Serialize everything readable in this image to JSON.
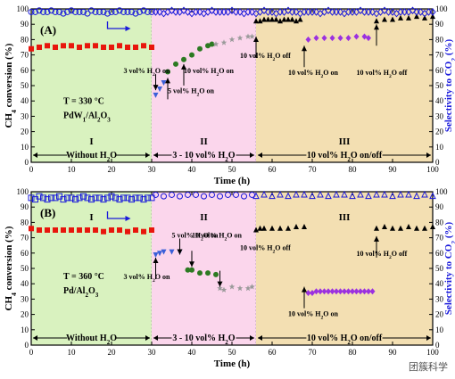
{
  "watermark": "团簇科学",
  "chart_data": [
    {
      "panel_label": "(A)",
      "type": "scatter",
      "xlabel": "Time (h)",
      "ylabel_left": "CH4 conversion (%)",
      "ylabel_right": "Selectivity to CO2 (%)",
      "xlim": [
        0,
        100
      ],
      "ylim": [
        0,
        100
      ],
      "xticks": [
        0,
        10,
        20,
        30,
        40,
        50,
        60,
        70,
        80,
        90,
        100
      ],
      "yticks": [
        0,
        10,
        20,
        30,
        40,
        50,
        60,
        70,
        80,
        90,
        100
      ],
      "regions": [
        {
          "label": "I",
          "range": [
            0,
            30
          ],
          "color": "#d9f2bf",
          "note": "Without H2O"
        },
        {
          "label": "II",
          "range": [
            30,
            56
          ],
          "color": "#fbd6ec",
          "note": "3 - 10 vol% H2O"
        },
        {
          "label": "III",
          "range": [
            56,
            100
          ],
          "color": "#f3dfb2",
          "note": "10 vol% H2O on/off"
        }
      ],
      "condition_lines": [
        "T = 330 °C",
        "PdW1/Al2O3"
      ],
      "series": [
        {
          "marker": "square",
          "color": "#e8160c",
          "axis": "left",
          "x": [
            0,
            2,
            4,
            6,
            8,
            10,
            12,
            14,
            16,
            18,
            20,
            22,
            24,
            26,
            28,
            30
          ],
          "y": [
            74,
            75,
            76,
            75,
            76,
            76,
            75,
            76,
            76,
            75,
            75,
            76,
            75,
            75,
            76,
            75
          ]
        },
        {
          "marker": "triangle-down",
          "color": "#3a5fd8",
          "axis": "left",
          "x": [
            31,
            32,
            33
          ],
          "y": [
            44,
            48,
            52
          ]
        },
        {
          "marker": "circle",
          "color": "#2c7a22",
          "axis": "left",
          "x": [
            34,
            36,
            38,
            40,
            42,
            44,
            45
          ],
          "y": [
            59,
            64,
            67,
            70,
            74,
            76,
            77
          ]
        },
        {
          "marker": "star",
          "color": "#9a9a9a",
          "axis": "left",
          "x": [
            46,
            48,
            50,
            52,
            54,
            55
          ],
          "y": [
            77,
            78,
            80,
            81,
            82,
            82
          ]
        },
        {
          "marker": "triangle-up",
          "color": "#000000",
          "axis": "left",
          "x": [
            56,
            57,
            58,
            59,
            60,
            61,
            62,
            63,
            64,
            65,
            66,
            67
          ],
          "y": [
            92,
            92,
            93,
            93,
            93,
            93,
            92,
            93,
            93,
            93,
            92,
            93
          ]
        },
        {
          "marker": "diamond",
          "color": "#9b30e0",
          "axis": "left",
          "x": [
            69,
            71,
            73,
            75,
            77,
            79,
            81,
            83,
            84
          ],
          "y": [
            80,
            81,
            81,
            81,
            81,
            81,
            82,
            82,
            81
          ]
        },
        {
          "marker": "triangle-up",
          "color": "#000000",
          "axis": "left",
          "x": [
            86,
            88,
            90,
            92,
            94,
            96,
            98,
            100
          ],
          "y": [
            92,
            93,
            93,
            94,
            94,
            95,
            94,
            95
          ]
        },
        {
          "marker": "open-circle",
          "color": "#1a1adb",
          "axis": "right",
          "x": [
            0,
            1,
            2,
            3,
            4,
            5,
            6,
            7,
            8,
            9,
            10,
            11,
            12,
            13,
            14,
            15,
            16,
            17,
            18,
            19,
            20,
            21,
            22,
            23,
            24,
            25,
            26,
            27,
            28,
            29,
            30
          ],
          "y": [
            98,
            98,
            99,
            98,
            98,
            99,
            98,
            98,
            97,
            98,
            99,
            98,
            98,
            98,
            97,
            99,
            98,
            98,
            98,
            97,
            98,
            98,
            99,
            98,
            98,
            98,
            97,
            98,
            99,
            98,
            98
          ]
        },
        {
          "marker": "open-diamond",
          "color": "#1a1adb",
          "axis": "right",
          "x": [
            31,
            32,
            33,
            34,
            35,
            36,
            37,
            38,
            39,
            40,
            41,
            42,
            43,
            44,
            45,
            46,
            47,
            48,
            49,
            50,
            51,
            52,
            53,
            54,
            55,
            56,
            57,
            58,
            59,
            60,
            61,
            62,
            63,
            64,
            65,
            66,
            67,
            68,
            69,
            70,
            71,
            72,
            73,
            74,
            75,
            76,
            77,
            78,
            79,
            80,
            81,
            82,
            83,
            84,
            85,
            86,
            87,
            88,
            89,
            90,
            91,
            92,
            93,
            94,
            95,
            96,
            97,
            98,
            99,
            100
          ],
          "y": [
            98,
            98,
            97,
            98,
            99,
            98,
            98,
            99,
            98,
            97,
            98,
            98,
            97,
            98,
            99,
            98,
            98,
            98,
            98,
            99,
            98,
            98,
            97,
            98,
            98,
            97,
            98,
            99,
            98,
            98,
            97,
            98,
            98,
            99,
            98,
            98,
            97,
            98,
            98,
            98,
            98,
            97,
            98,
            99,
            98,
            98,
            98,
            97,
            98,
            98,
            98,
            99,
            98,
            98,
            98,
            97,
            98,
            99,
            98,
            98,
            97,
            98,
            98,
            98,
            99,
            98,
            98,
            97,
            98,
            98
          ]
        }
      ],
      "annotations": [
        {
          "text": "3 vol% H2O on",
          "arrow_x": 31,
          "arrow_y": 47
        },
        {
          "text": "5 vol% H2O on",
          "arrow_x": 34,
          "arrow_y": 55
        },
        {
          "text": "10 vol% H2O on",
          "arrow_x": 38,
          "arrow_y": 64
        },
        {
          "text": "10 vol% H2O off",
          "arrow_x": 56,
          "arrow_y": 82
        },
        {
          "text": "10 vol% H2O on",
          "arrow_x": 68,
          "arrow_y": 76
        },
        {
          "text": "10 vol% H2O off",
          "arrow_x": 86,
          "arrow_y": 90
        }
      ]
    },
    {
      "panel_label": "(B)",
      "type": "scatter",
      "xlabel": "Time (h)",
      "ylabel_left": "CH4 conversion (%)",
      "ylabel_right": "Selectivity to CO2 (%)",
      "xlim": [
        0,
        100
      ],
      "ylim": [
        0,
        100
      ],
      "xticks": [
        0,
        10,
        20,
        30,
        40,
        50,
        60,
        70,
        80,
        90,
        100
      ],
      "yticks": [
        0,
        10,
        20,
        30,
        40,
        50,
        60,
        70,
        80,
        90,
        100
      ],
      "regions": [
        {
          "label": "I",
          "range": [
            0,
            30
          ],
          "color": "#d9f2bf",
          "note": "Without H2O"
        },
        {
          "label": "II",
          "range": [
            30,
            56
          ],
          "color": "#fbd6ec",
          "note": "3 - 10 vol% H2O"
        },
        {
          "label": "III",
          "range": [
            56,
            100
          ],
          "color": "#f3dfb2",
          "note": "10 vol% H2O on/off"
        }
      ],
      "condition_lines": [
        "T = 360 °C",
        "Pd/Al2O3"
      ],
      "series": [
        {
          "marker": "square",
          "color": "#e8160c",
          "axis": "left",
          "x": [
            0,
            2,
            4,
            6,
            8,
            10,
            12,
            14,
            16,
            18,
            20,
            22,
            24,
            26,
            28,
            30
          ],
          "y": [
            76,
            75,
            75,
            75,
            75,
            75,
            75,
            75,
            75,
            74,
            75,
            75,
            74,
            75,
            74,
            75
          ]
        },
        {
          "marker": "triangle-down",
          "color": "#3a5fd8",
          "axis": "left",
          "x": [
            31,
            32,
            33,
            35,
            37
          ],
          "y": [
            59,
            60,
            61,
            61,
            61
          ]
        },
        {
          "marker": "circle",
          "color": "#2c7a22",
          "axis": "left",
          "x": [
            39,
            40,
            42,
            44,
            46
          ],
          "y": [
            49,
            49,
            47,
            47,
            46
          ]
        },
        {
          "marker": "star",
          "color": "#9a9a9a",
          "axis": "left",
          "x": [
            47,
            48,
            50,
            52,
            54,
            55
          ],
          "y": [
            37,
            36,
            38,
            37,
            37,
            38
          ]
        },
        {
          "marker": "triangle-up",
          "color": "#000000",
          "axis": "left",
          "x": [
            56,
            57,
            58,
            60,
            62,
            64,
            66,
            68
          ],
          "y": [
            75,
            76,
            76,
            76,
            76,
            76,
            77,
            77
          ]
        },
        {
          "marker": "diamond",
          "color": "#9b30e0",
          "axis": "left",
          "x": [
            69,
            70,
            71,
            72,
            73,
            74,
            75,
            76,
            77,
            78,
            79,
            80,
            81,
            82,
            83,
            84,
            85
          ],
          "y": [
            34,
            34,
            35,
            35,
            35,
            35,
            35,
            35,
            35,
            35,
            35,
            35,
            35,
            35,
            35,
            35,
            35
          ]
        },
        {
          "marker": "triangle-up",
          "color": "#000000",
          "axis": "left",
          "x": [
            86,
            88,
            90,
            92,
            94,
            96,
            98,
            100
          ],
          "y": [
            76,
            77,
            76,
            76,
            77,
            76,
            76,
            77
          ]
        },
        {
          "marker": "open-square",
          "color": "#1a1adb",
          "axis": "right",
          "x": [
            0,
            1,
            2,
            3,
            4,
            5,
            6,
            7,
            8,
            9,
            10,
            11,
            12,
            13,
            14,
            15,
            16,
            17,
            18,
            19,
            20,
            21,
            22,
            23,
            24,
            25,
            26,
            27,
            28,
            29,
            30
          ],
          "y": [
            96,
            95,
            97,
            96,
            95,
            96,
            96,
            97,
            95,
            96,
            96,
            95,
            96,
            97,
            96,
            95,
            96,
            96,
            95,
            96,
            97,
            96,
            95,
            96,
            96,
            95,
            96,
            96,
            95,
            96,
            96
          ]
        },
        {
          "marker": "open-circle",
          "color": "#1a1adb",
          "axis": "right",
          "x": [
            31,
            33,
            35,
            37,
            39,
            41,
            43,
            45,
            47,
            49,
            51,
            53,
            55
          ],
          "y": [
            98,
            97,
            98,
            97,
            98,
            98,
            97,
            98,
            97,
            98,
            98,
            97,
            98
          ]
        },
        {
          "marker": "open-triangle-up",
          "color": "#1a1adb",
          "axis": "right",
          "x": [
            56,
            58,
            60,
            62,
            64,
            66,
            68,
            70,
            72,
            74,
            76,
            78,
            80,
            82,
            84,
            86,
            88,
            90,
            92,
            94,
            96,
            98,
            100
          ],
          "y": [
            97,
            98,
            97,
            98,
            97,
            98,
            98,
            97,
            98,
            97,
            98,
            98,
            97,
            98,
            97,
            98,
            98,
            97,
            98,
            98,
            97,
            98,
            97
          ]
        }
      ],
      "annotations": [
        {
          "text": "3 vol% H2O on",
          "arrow_x": 31,
          "arrow_y": 57
        },
        {
          "text": "5 vol% H2O on",
          "arrow_x": 37,
          "arrow_y": 59
        },
        {
          "text": "10 vol% H2O on",
          "arrow_x": 40,
          "arrow_y": 51
        },
        {
          "text": "10 vol% H2O off",
          "arrow_x": 47,
          "arrow_y": 38
        },
        {
          "text": "10 vol% H2O on",
          "arrow_x": 68,
          "arrow_y": 38
        },
        {
          "text": "10 vol% H2O off",
          "arrow_x": 86,
          "arrow_y": 71
        }
      ]
    }
  ]
}
